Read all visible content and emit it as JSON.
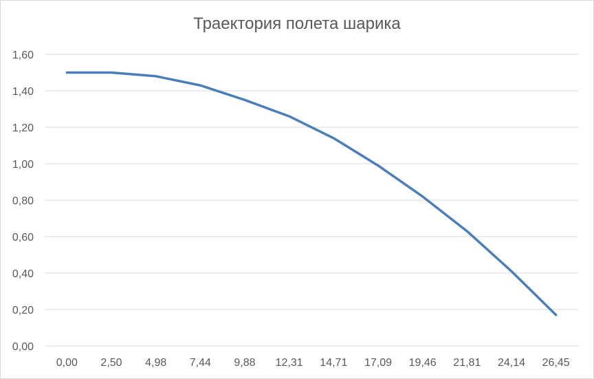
{
  "chart_data": {
    "type": "line",
    "title": "Траектория полета шарика",
    "xlabel": "",
    "ylabel": "",
    "categories": [
      "0,00",
      "2,50",
      "4,98",
      "7,44",
      "9,88",
      "12,31",
      "14,71",
      "17,09",
      "19,46",
      "21,81",
      "24,14",
      "26,45"
    ],
    "y_tick_labels": [
      "0,00",
      "0,20",
      "0,40",
      "0,60",
      "0,80",
      "1,00",
      "1,20",
      "1,40",
      "1,60"
    ],
    "ylim": [
      0,
      1.6
    ],
    "grid": "horizontal",
    "legend": "none",
    "series": [
      {
        "color": "#4a7ebb",
        "values": [
          1.5,
          1.5,
          1.48,
          1.43,
          1.35,
          1.26,
          1.14,
          0.99,
          0.82,
          0.63,
          0.41,
          0.17
        ]
      }
    ]
  }
}
